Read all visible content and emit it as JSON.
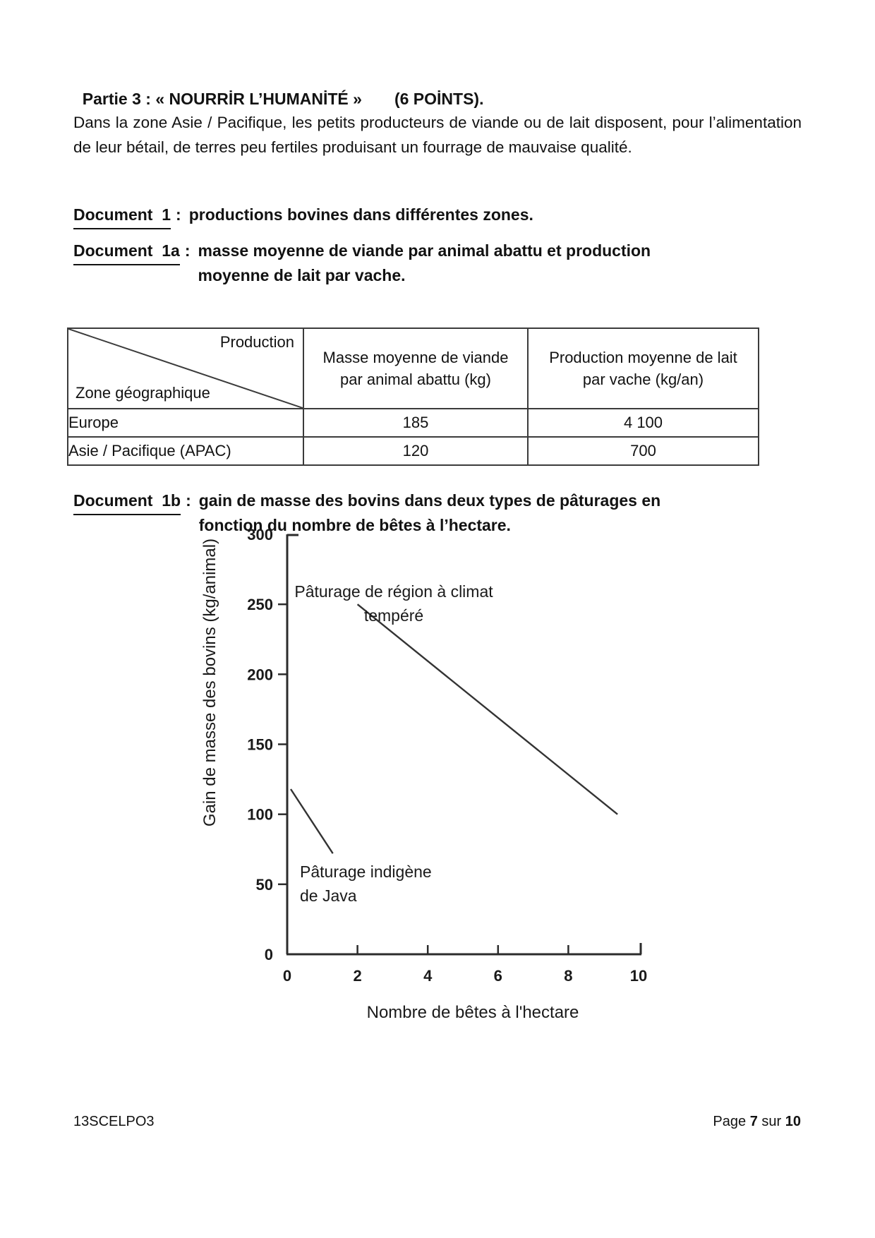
{
  "page": {
    "title": "Partie 3 : « NOURRİR L’HUMANİTÉ »",
    "points": "(6 POİNTS).",
    "intro": "Dans la zone Asie / Pacifique, les petits producteurs de viande ou de lait disposent, pour l’alimentation de leur bétail, de terres peu fertiles produisant un fourrage de mauvaise qualité."
  },
  "doc1": {
    "label": "Document  1",
    "colon": ":",
    "text": "productions bovines dans différentes zones."
  },
  "doc1a": {
    "label": "Document  1a",
    "colon": ":",
    "line1": "masse moyenne de viande par animal abattu et production",
    "line2": "moyenne de lait par vache."
  },
  "table": {
    "corner_top": "Production",
    "corner_bottom": "Zone géographique",
    "col_viande": "Masse moyenne de viande par animal abattu (kg)",
    "col_lait": "Production moyenne de lait par vache (kg/an)",
    "rows": [
      {
        "zone": "Europe",
        "viande": "185",
        "lait": "4 100"
      },
      {
        "zone": "Asie / Pacifique (APAC)",
        "viande": "120",
        "lait": "700"
      }
    ]
  },
  "doc1b": {
    "label": "Document  1b",
    "colon": ":",
    "line1": "gain de masse des bovins dans deux types de pâturages en",
    "line2": "fonction du nombre de bêtes à l’hectare."
  },
  "chart_data": {
    "type": "line",
    "title": "",
    "xlabel": "Nombre de bêtes à l'hectare",
    "ylabel": "Gain de masse des bovins (kg/animal)",
    "xlim": [
      0,
      10
    ],
    "ylim": [
      0,
      300
    ],
    "xticks": [
      0,
      2,
      4,
      6,
      8,
      10
    ],
    "yticks": [
      0,
      50,
      100,
      150,
      200,
      250,
      300
    ],
    "grid": false,
    "legend": "inline-annotations",
    "series": [
      {
        "name": "Pâturage de région à climat tempéré",
        "points": [
          [
            2,
            250
          ],
          [
            9.4,
            100
          ]
        ]
      },
      {
        "name": "Pâturage indigène de Java",
        "points": [
          [
            0.1,
            118
          ],
          [
            1.3,
            72
          ]
        ]
      }
    ],
    "annotations": [
      {
        "lines": [
          "Pâturage de région à climat",
          "tempéré"
        ]
      },
      {
        "lines": [
          "Pâturage indigène",
          "de Java"
        ]
      }
    ]
  },
  "footer": {
    "code": "13SCELPO3",
    "page_word": "Page",
    "page_number": "7",
    "sur": "sur",
    "total_pages": "10"
  }
}
